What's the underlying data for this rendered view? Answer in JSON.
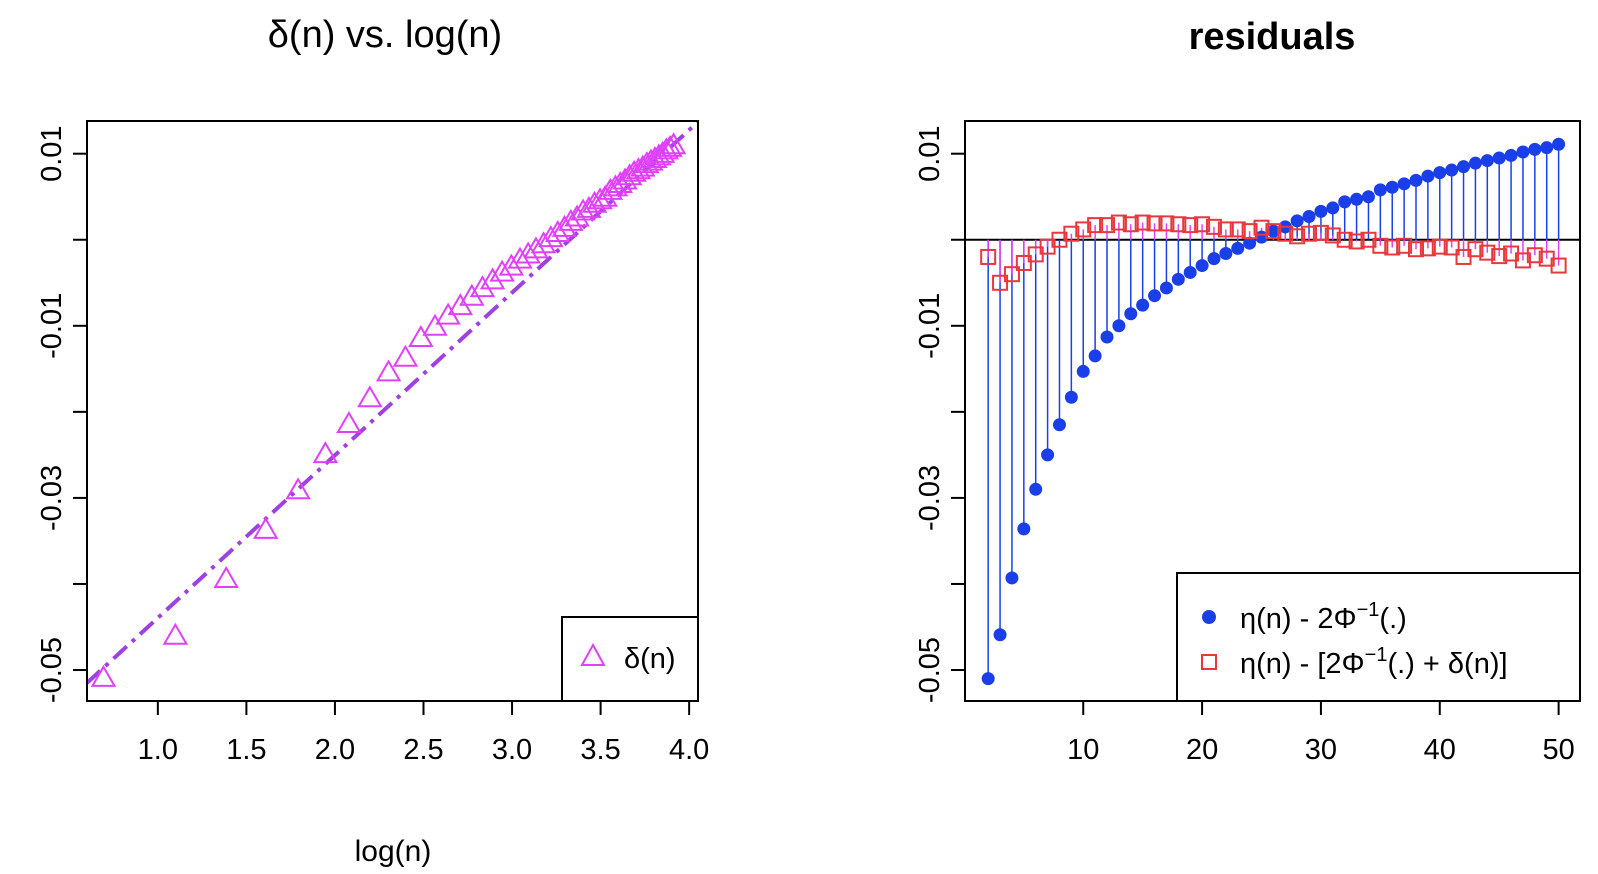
{
  "chart_data": [
    {
      "type": "scatter",
      "title": "δ(n) vs. log(n)",
      "xlabel": "log(n)",
      "ylabel": "",
      "xlim": [
        0.6,
        4.05
      ],
      "ylim": [
        -0.0536,
        0.0138
      ],
      "xticks": [
        1.0,
        1.5,
        2.0,
        2.5,
        3.0,
        3.5,
        4.0
      ],
      "xtick_labels": [
        "1.0",
        "1.5",
        "2.0",
        "2.5",
        "3.0",
        "3.5",
        "4.0"
      ],
      "yticks": [
        -0.05,
        -0.04,
        -0.03,
        -0.02,
        -0.01,
        0.0,
        0.01
      ],
      "ytick_labels": [
        "-0.05",
        "",
        "-0.03",
        "",
        "-0.01",
        "",
        "0.01"
      ],
      "series": [
        {
          "name": "δ(n)",
          "marker": "triangle-open",
          "color": "#E040FB",
          "x": [
            0.693,
            1.099,
            1.386,
            1.609,
            1.792,
            1.946,
            2.079,
            2.197,
            2.303,
            2.398,
            2.485,
            2.565,
            2.639,
            2.708,
            2.773,
            2.833,
            2.89,
            2.944,
            2.996,
            3.045,
            3.091,
            3.135,
            3.178,
            3.219,
            3.258,
            3.296,
            3.332,
            3.367,
            3.401,
            3.434,
            3.466,
            3.497,
            3.526,
            3.555,
            3.584,
            3.611,
            3.638,
            3.664,
            3.689,
            3.714,
            3.738,
            3.761,
            3.784,
            3.807,
            3.829,
            3.85,
            3.871,
            3.892,
            3.912
          ],
          "y": [
            -0.0508,
            -0.0459,
            -0.0393,
            -0.0336,
            -0.029,
            -0.0248,
            -0.0213,
            -0.0183,
            -0.0153,
            -0.0136,
            -0.0113,
            -0.01,
            -0.0087,
            -0.0076,
            -0.0065,
            -0.0055,
            -0.0046,
            -0.0037,
            -0.003,
            -0.0022,
            -0.0016,
            -0.001,
            -0.0004,
            0.0003,
            0.0009,
            0.0015,
            0.0022,
            0.0027,
            0.0034,
            0.0037,
            0.0043,
            0.0047,
            0.005,
            0.0058,
            0.0062,
            0.0066,
            0.007,
            0.0075,
            0.0079,
            0.0082,
            0.0085,
            0.0089,
            0.0092,
            0.0095,
            0.0098,
            0.0101,
            0.0105,
            0.0108,
            0.0111
          ]
        }
      ],
      "fit_line": {
        "style": "dash-dot",
        "color": "#A040E0",
        "x": [
          0.6,
          4.05
        ],
        "y": [
          -0.0515,
          0.0137
        ]
      },
      "legend": {
        "position": "bottom-right",
        "entries": [
          {
            "label": "δ(n)",
            "marker": "triangle-open",
            "color": "#E040FB"
          }
        ]
      }
    },
    {
      "type": "scatter",
      "title": "residuals",
      "xlabel": "",
      "ylabel": "",
      "xlim": [
        0.05,
        51.8
      ],
      "ylim": [
        -0.0536,
        0.0138
      ],
      "xticks": [
        10,
        20,
        30,
        40,
        50
      ],
      "xtick_labels": [
        "10",
        "20",
        "30",
        "40",
        "50"
      ],
      "yticks": [
        -0.05,
        -0.04,
        -0.03,
        -0.02,
        -0.01,
        0.0,
        0.01
      ],
      "ytick_labels": [
        "-0.05",
        "",
        "-0.03",
        "",
        "-0.01",
        "",
        "0.01"
      ],
      "hline": 0.0,
      "series": [
        {
          "name": "η(n) - 2Φ⁻¹(.)",
          "marker": "circle-filled",
          "color": "#1A3FE8",
          "stem": true,
          "x": [
            2,
            3,
            4,
            5,
            6,
            7,
            8,
            9,
            10,
            11,
            12,
            13,
            14,
            15,
            16,
            17,
            18,
            19,
            20,
            21,
            22,
            23,
            24,
            25,
            26,
            27,
            28,
            29,
            30,
            31,
            32,
            33,
            34,
            35,
            36,
            37,
            38,
            39,
            40,
            41,
            42,
            43,
            44,
            45,
            46,
            47,
            48,
            49,
            50
          ],
          "y": [
            -0.051,
            -0.0459,
            -0.0393,
            -0.0336,
            -0.029,
            -0.025,
            -0.0215,
            -0.0183,
            -0.0153,
            -0.0135,
            -0.0113,
            -0.01,
            -0.0086,
            -0.0076,
            -0.0065,
            -0.0056,
            -0.0046,
            -0.0038,
            -0.003,
            -0.0022,
            -0.0016,
            -0.001,
            -0.0004,
            0.0003,
            0.001,
            0.0015,
            0.0022,
            0.0027,
            0.0033,
            0.0037,
            0.0044,
            0.0047,
            0.005,
            0.0058,
            0.0061,
            0.0065,
            0.0069,
            0.0074,
            0.0078,
            0.0081,
            0.0085,
            0.0089,
            0.0092,
            0.0095,
            0.0098,
            0.0102,
            0.0105,
            0.0107,
            0.0111
          ]
        },
        {
          "name": "η(n) - [2Φ⁻¹(.) + δ(n)]",
          "marker": "square-open",
          "color": "#E8383D",
          "stem_color": "#E040FB",
          "stem": true,
          "x": [
            2,
            3,
            4,
            5,
            6,
            7,
            8,
            9,
            10,
            11,
            12,
            13,
            14,
            15,
            16,
            17,
            18,
            19,
            20,
            21,
            22,
            23,
            24,
            25,
            26,
            27,
            28,
            29,
            30,
            31,
            32,
            33,
            34,
            35,
            36,
            37,
            38,
            39,
            40,
            41,
            42,
            43,
            44,
            45,
            46,
            47,
            48,
            49,
            50
          ],
          "y": [
            -0.002,
            -0.005,
            -0.004,
            -0.0027,
            -0.0017,
            -0.0008,
            0.0,
            0.0007,
            0.0012,
            0.0017,
            0.0017,
            0.002,
            0.0018,
            0.002,
            0.0019,
            0.0019,
            0.0018,
            0.0017,
            0.0018,
            0.0015,
            0.0012,
            0.0012,
            0.001,
            0.0014,
            0.001,
            0.0007,
            0.0004,
            0.0007,
            0.0008,
            0.0005,
            0.0,
            -0.0002,
            0.0,
            -0.0007,
            -0.0009,
            -0.0007,
            -0.0011,
            -0.001,
            -0.0008,
            -0.0009,
            -0.002,
            -0.0011,
            -0.0015,
            -0.0019,
            -0.0016,
            -0.0024,
            -0.0018,
            -0.0022,
            -0.003
          ]
        }
      ],
      "legend": {
        "position": "bottom-right",
        "entries": [
          {
            "label_main": "η(n) - 2Φ",
            "label_sup": "−1",
            "label_tail": "(.)",
            "marker": "circle-filled",
            "color": "#1A3FE8"
          },
          {
            "label_main": "η(n) - [2Φ",
            "label_sup": "−1",
            "label_tail": "(.) + δ(n)]",
            "marker": "square-open",
            "color": "#E8383D"
          }
        ]
      }
    }
  ]
}
